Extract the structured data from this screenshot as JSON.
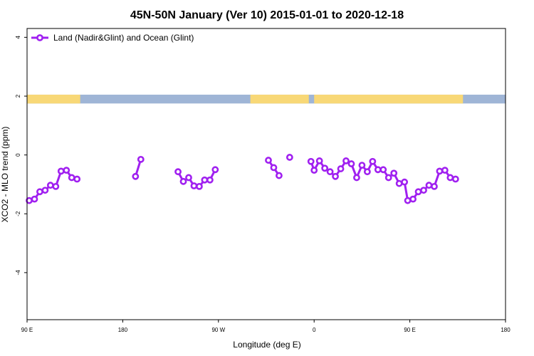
{
  "chart_data": {
    "type": "line",
    "title": "45N-50N January (Ver 10)   2015-01-01 to 2020-12-18",
    "xlabel": "Longitude (deg E)",
    "ylabel": "XCO2 - MLO trend (ppm)",
    "xlim": [
      90,
      540
    ],
    "ylim": [
      -5.6,
      4.3
    ],
    "x_ticks": [
      {
        "value": 90,
        "label": "90 E"
      },
      {
        "value": 180,
        "label": "180"
      },
      {
        "value": 270,
        "label": "90 W"
      },
      {
        "value": 360,
        "label": "0"
      },
      {
        "value": 450,
        "label": "90 E"
      },
      {
        "value": 540,
        "label": "180"
      }
    ],
    "y_ticks": [
      {
        "value": 4,
        "label": "4"
      },
      {
        "value": 2,
        "label": "2"
      },
      {
        "value": 0,
        "label": "0"
      },
      {
        "value": -2,
        "label": "-2"
      },
      {
        "value": -4,
        "label": "-4"
      }
    ],
    "legend": {
      "position": "top-left",
      "entries": [
        {
          "label": "Land (Nadir&Glint) and Ocean (Glint)",
          "color": "#a020f0"
        }
      ]
    },
    "series": [
      {
        "name": "Land (Nadir&Glint) and Ocean (Glint)",
        "color": "#a020f0",
        "segments": [
          [
            [
              92,
              -1.55
            ],
            [
              97,
              -1.5
            ],
            [
              102,
              -1.25
            ],
            [
              107,
              -1.2
            ],
            [
              112,
              -1.03
            ],
            [
              117,
              -1.07
            ],
            [
              122,
              -0.55
            ],
            [
              127,
              -0.52
            ],
            [
              132,
              -0.77
            ],
            [
              137,
              -0.82
            ]
          ],
          [
            [
              192,
              -0.73
            ],
            [
              197,
              -0.15
            ]
          ],
          [
            [
              232,
              -0.57
            ],
            [
              237,
              -0.9
            ],
            [
              242,
              -0.77
            ],
            [
              247,
              -1.05
            ],
            [
              252,
              -1.07
            ],
            [
              257,
              -0.85
            ],
            [
              262,
              -0.85
            ],
            [
              267,
              -0.5
            ]
          ],
          [
            [
              317,
              -0.18
            ],
            [
              322,
              -0.43
            ],
            [
              327,
              -0.7
            ]
          ],
          [
            [
              337,
              -0.08
            ]
          ],
          [
            [
              357,
              -0.22
            ],
            [
              360,
              -0.52
            ],
            [
              365,
              -0.2
            ],
            [
              370,
              -0.45
            ],
            [
              375,
              -0.57
            ],
            [
              380,
              -0.73
            ],
            [
              385,
              -0.47
            ],
            [
              390,
              -0.2
            ],
            [
              395,
              -0.3
            ],
            [
              400,
              -0.77
            ],
            [
              405,
              -0.35
            ],
            [
              410,
              -0.57
            ],
            [
              415,
              -0.22
            ],
            [
              420,
              -0.5
            ],
            [
              425,
              -0.5
            ],
            [
              430,
              -0.77
            ],
            [
              435,
              -0.62
            ],
            [
              440,
              -0.97
            ],
            [
              445,
              -0.92
            ],
            [
              448,
              -1.55
            ],
            [
              453,
              -1.5
            ],
            [
              458,
              -1.25
            ],
            [
              463,
              -1.2
            ],
            [
              468,
              -1.03
            ],
            [
              473,
              -1.07
            ],
            [
              478,
              -0.55
            ],
            [
              483,
              -0.52
            ],
            [
              488,
              -0.77
            ],
            [
              493,
              -0.82
            ]
          ]
        ]
      }
    ],
    "land_ocean_band": {
      "ymin": 1.75,
      "ymax": 2.05,
      "land_color": "#f8d877",
      "ocean_color": "#9fb5d6",
      "land_ranges": [
        [
          90,
          140
        ],
        [
          300,
          355
        ],
        [
          360,
          500
        ]
      ]
    },
    "grid": false
  }
}
